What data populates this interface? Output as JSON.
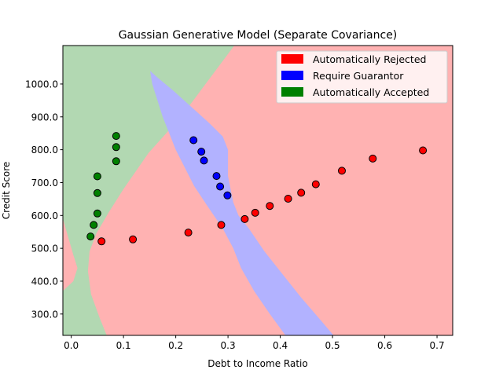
{
  "chart_data": {
    "type": "scatter",
    "title": "Gaussian Generative Model (Separate Covariance)",
    "xlabel": "Debt to Income Ratio",
    "ylabel": "Credit Score",
    "xlim": [
      -0.016,
      0.73
    ],
    "ylim": [
      235,
      1117
    ],
    "x_ticks": [
      0.0,
      0.1,
      0.2,
      0.3,
      0.4,
      0.5,
      0.6,
      0.7
    ],
    "x_tick_labels": [
      "0.0",
      "0.1",
      "0.2",
      "0.3",
      "0.4",
      "0.5",
      "0.6",
      "0.7"
    ],
    "y_ticks": [
      300,
      400,
      500,
      600,
      700,
      800,
      900,
      1000
    ],
    "y_tick_labels": [
      "300.0",
      "400.0",
      "500.0",
      "600.0",
      "700.0",
      "800.0",
      "900.0",
      "1000.0"
    ],
    "legend_position": "top-right",
    "legend": [
      {
        "label": "Automatically Rejected",
        "color": "#ff0000"
      },
      {
        "label": "Require Guarantor",
        "color": "#0000ff"
      },
      {
        "label": "Automatically Accepted",
        "color": "#008000"
      }
    ],
    "region_colors": {
      "rejected": "#ffb2b2",
      "guarantor": "#b2b2ff",
      "accepted": "#b2d8b2"
    },
    "regions": {
      "accepted": [
        [
          -0.016,
          1117
        ],
        [
          0.312,
          1117
        ],
        [
          0.21,
          900
        ],
        [
          0.148,
          790
        ],
        [
          0.1,
          680
        ],
        [
          0.072,
          610
        ],
        [
          0.048,
          545
        ],
        [
          0.035,
          490
        ],
        [
          0.032,
          430
        ],
        [
          0.038,
          360
        ],
        [
          0.054,
          290
        ],
        [
          0.068,
          235
        ],
        [
          -0.016,
          235
        ],
        [
          -0.016,
          370
        ],
        [
          0.004,
          400
        ],
        [
          0.012,
          440
        ],
        [
          0.004,
          480
        ],
        [
          -0.016,
          590
        ]
      ],
      "guarantor": [
        [
          0.151,
          1040
        ],
        [
          0.165,
          1020
        ],
        [
          0.195,
          980
        ],
        [
          0.23,
          930
        ],
        [
          0.265,
          880
        ],
        [
          0.29,
          840
        ],
        [
          0.3,
          800
        ],
        [
          0.3,
          720
        ],
        [
          0.305,
          680
        ],
        [
          0.31,
          640
        ],
        [
          0.32,
          600
        ],
        [
          0.34,
          560
        ],
        [
          0.37,
          490
        ],
        [
          0.405,
          420
        ],
        [
          0.44,
          350
        ],
        [
          0.478,
          280
        ],
        [
          0.502,
          235
        ],
        [
          0.41,
          235
        ],
        [
          0.38,
          300
        ],
        [
          0.35,
          370
        ],
        [
          0.325,
          440
        ],
        [
          0.31,
          500
        ],
        [
          0.29,
          560
        ],
        [
          0.26,
          630
        ],
        [
          0.235,
          690
        ],
        [
          0.2,
          800
        ],
        [
          0.175,
          900
        ],
        [
          0.155,
          1000
        ]
      ]
    },
    "series": [
      {
        "name": "Automatically Rejected",
        "color": "#ff0000",
        "points": [
          [
            0.058,
            521
          ],
          [
            0.118,
            527
          ],
          [
            0.224,
            548
          ],
          [
            0.287,
            571
          ],
          [
            0.332,
            589
          ],
          [
            0.352,
            608
          ],
          [
            0.38,
            629
          ],
          [
            0.415,
            651
          ],
          [
            0.44,
            669
          ],
          [
            0.468,
            695
          ],
          [
            0.518,
            736
          ],
          [
            0.577,
            773
          ],
          [
            0.673,
            798
          ]
        ]
      },
      {
        "name": "Require Guarantor",
        "color": "#0000ff",
        "points": [
          [
            0.234,
            829
          ],
          [
            0.249,
            794
          ],
          [
            0.254,
            767
          ],
          [
            0.278,
            720
          ],
          [
            0.285,
            688
          ],
          [
            0.299,
            661
          ]
        ]
      },
      {
        "name": "Automatically Accepted",
        "color": "#008000",
        "points": [
          [
            0.037,
            536
          ],
          [
            0.043,
            571
          ],
          [
            0.05,
            606
          ],
          [
            0.05,
            668
          ],
          [
            0.05,
            719
          ],
          [
            0.086,
            765
          ],
          [
            0.086,
            808
          ],
          [
            0.086,
            842
          ]
        ]
      }
    ]
  }
}
